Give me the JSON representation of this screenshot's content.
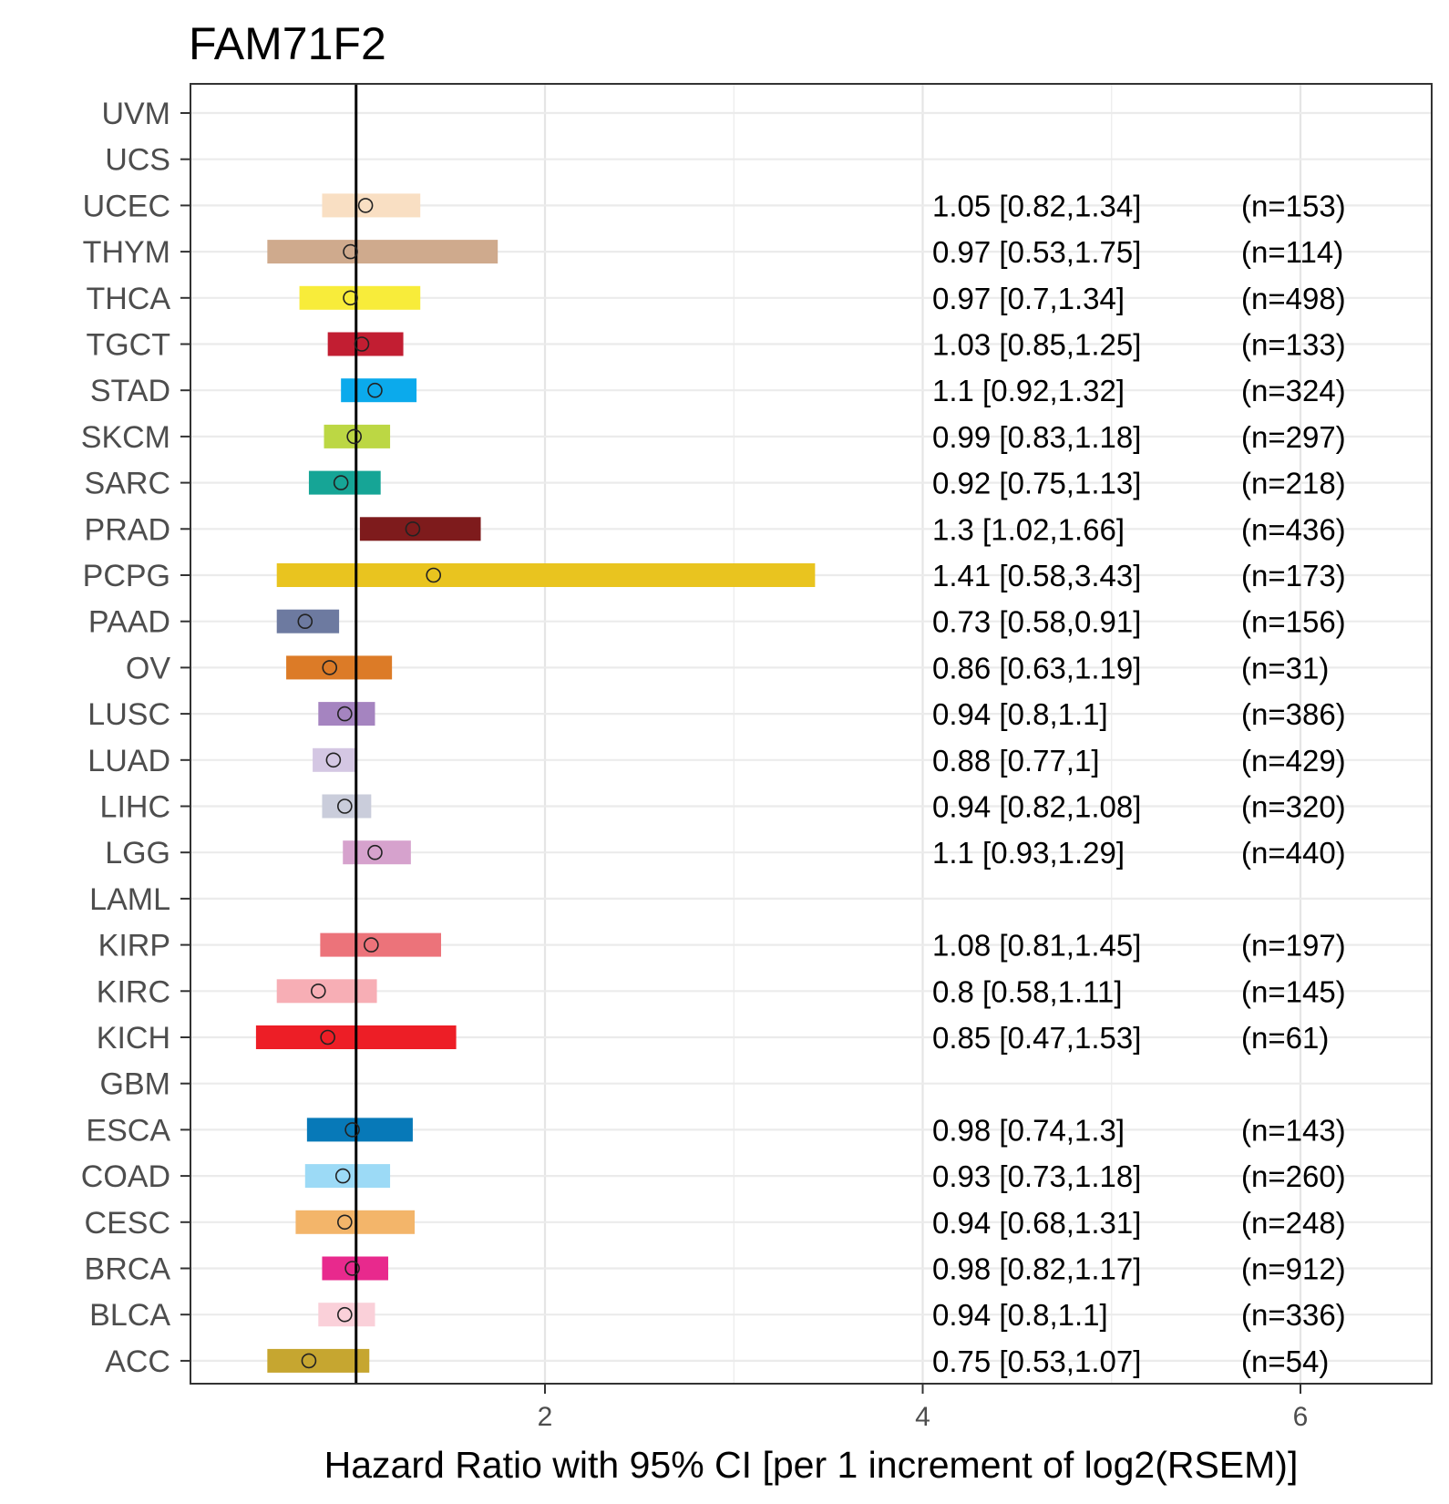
{
  "chart_data": {
    "type": "forest",
    "title": "FAM71F2",
    "xlabel": "Hazard Ratio with 95% CI [per 1 increment of log2(RSEM)]",
    "ylabel": "",
    "xlim": [
      0.13,
      6.7
    ],
    "xticks": [
      2,
      4,
      6
    ],
    "reference_line": 1,
    "grid": true,
    "categories": [
      "UVM",
      "UCS",
      "UCEC",
      "THYM",
      "THCA",
      "TGCT",
      "STAD",
      "SKCM",
      "SARC",
      "PRAD",
      "PCPG",
      "PAAD",
      "OV",
      "LUSC",
      "LUAD",
      "LIHC",
      "LGG",
      "LAML",
      "KIRP",
      "KIRC",
      "KICH",
      "GBM",
      "ESCA",
      "COAD",
      "CESC",
      "BRCA",
      "BLCA",
      "ACC"
    ],
    "rows": [
      {
        "cancer": "UVM",
        "hr": null,
        "lo": null,
        "hi": null,
        "label": "",
        "n": "",
        "color": null
      },
      {
        "cancer": "UCS",
        "hr": null,
        "lo": null,
        "hi": null,
        "label": "",
        "n": "",
        "color": null
      },
      {
        "cancer": "UCEC",
        "hr": 1.05,
        "lo": 0.82,
        "hi": 1.34,
        "label": "1.05 [0.82,1.34]",
        "n": "(n=153)",
        "color": "#F9DFC3"
      },
      {
        "cancer": "THYM",
        "hr": 0.97,
        "lo": 0.53,
        "hi": 1.75,
        "label": "0.97 [0.53,1.75]",
        "n": "(n=114)",
        "color": "#CFAA8D"
      },
      {
        "cancer": "THCA",
        "hr": 0.97,
        "lo": 0.7,
        "hi": 1.34,
        "label": "0.97 [0.7,1.34]",
        "n": "(n=498)",
        "color": "#F8EC3A"
      },
      {
        "cancer": "TGCT",
        "hr": 1.03,
        "lo": 0.85,
        "hi": 1.25,
        "label": "1.03 [0.85,1.25]",
        "n": "(n=133)",
        "color": "#C21E32"
      },
      {
        "cancer": "STAD",
        "hr": 1.1,
        "lo": 0.92,
        "hi": 1.32,
        "label": "1.1 [0.92,1.32]",
        "n": "(n=324)",
        "color": "#0BAAEC"
      },
      {
        "cancer": "SKCM",
        "hr": 0.99,
        "lo": 0.83,
        "hi": 1.18,
        "label": "0.99 [0.83,1.18]",
        "n": "(n=297)",
        "color": "#BCD744"
      },
      {
        "cancer": "SARC",
        "hr": 0.92,
        "lo": 0.75,
        "hi": 1.13,
        "label": "0.92 [0.75,1.13]",
        "n": "(n=218)",
        "color": "#16A596"
      },
      {
        "cancer": "PRAD",
        "hr": 1.3,
        "lo": 1.02,
        "hi": 1.66,
        "label": "1.3 [1.02,1.66]",
        "n": "(n=436)",
        "color": "#7E1B1C"
      },
      {
        "cancer": "PCPG",
        "hr": 1.41,
        "lo": 0.58,
        "hi": 3.43,
        "label": "1.41 [0.58,3.43]",
        "n": "(n=173)",
        "color": "#E9C41F"
      },
      {
        "cancer": "PAAD",
        "hr": 0.73,
        "lo": 0.58,
        "hi": 0.91,
        "label": "0.73 [0.58,0.91]",
        "n": "(n=156)",
        "color": "#6D7AA0"
      },
      {
        "cancer": "OV",
        "hr": 0.86,
        "lo": 0.63,
        "hi": 1.19,
        "label": "0.86 [0.63,1.19]",
        "n": "(n=31)",
        "color": "#DC7B27"
      },
      {
        "cancer": "LUSC",
        "hr": 0.94,
        "lo": 0.8,
        "hi": 1.1,
        "label": "0.94 [0.8,1.1]",
        "n": "(n=386)",
        "color": "#A584C0"
      },
      {
        "cancer": "LUAD",
        "hr": 0.88,
        "lo": 0.77,
        "hi": 1.0,
        "label": "0.88 [0.77,1]",
        "n": "(n=429)",
        "color": "#D4C7E3"
      },
      {
        "cancer": "LIHC",
        "hr": 0.94,
        "lo": 0.82,
        "hi": 1.08,
        "label": "0.94 [0.82,1.08]",
        "n": "(n=320)",
        "color": "#CACDDB"
      },
      {
        "cancer": "LGG",
        "hr": 1.1,
        "lo": 0.93,
        "hi": 1.29,
        "label": "1.1 [0.93,1.29]",
        "n": "(n=440)",
        "color": "#D6A2CD"
      },
      {
        "cancer": "LAML",
        "hr": null,
        "lo": null,
        "hi": null,
        "label": "",
        "n": "",
        "color": null
      },
      {
        "cancer": "KIRP",
        "hr": 1.08,
        "lo": 0.81,
        "hi": 1.45,
        "label": "1.08 [0.81,1.45]",
        "n": "(n=197)",
        "color": "#EC737A"
      },
      {
        "cancer": "KIRC",
        "hr": 0.8,
        "lo": 0.58,
        "hi": 1.11,
        "label": "0.8 [0.58,1.11]",
        "n": "(n=145)",
        "color": "#F7AEB5"
      },
      {
        "cancer": "KICH",
        "hr": 0.85,
        "lo": 0.47,
        "hi": 1.53,
        "label": "0.85 [0.47,1.53]",
        "n": "(n=61)",
        "color": "#ED1E26"
      },
      {
        "cancer": "GBM",
        "hr": null,
        "lo": null,
        "hi": null,
        "label": "",
        "n": "",
        "color": null
      },
      {
        "cancer": "ESCA",
        "hr": 0.98,
        "lo": 0.74,
        "hi": 1.3,
        "label": "0.98 [0.74,1.3]",
        "n": "(n=143)",
        "color": "#0779B8"
      },
      {
        "cancer": "COAD",
        "hr": 0.93,
        "lo": 0.73,
        "hi": 1.18,
        "label": "0.93 [0.73,1.18]",
        "n": "(n=260)",
        "color": "#9CDAF6"
      },
      {
        "cancer": "CESC",
        "hr": 0.94,
        "lo": 0.68,
        "hi": 1.31,
        "label": "0.94 [0.68,1.31]",
        "n": "(n=248)",
        "color": "#F3B56A"
      },
      {
        "cancer": "BRCA",
        "hr": 0.98,
        "lo": 0.82,
        "hi": 1.17,
        "label": "0.98 [0.82,1.17]",
        "n": "(n=912)",
        "color": "#E8298D"
      },
      {
        "cancer": "BLCA",
        "hr": 0.94,
        "lo": 0.8,
        "hi": 1.1,
        "label": "0.94 [0.8,1.1]",
        "n": "(n=336)",
        "color": "#FAD0D9"
      },
      {
        "cancer": "ACC",
        "hr": 0.75,
        "lo": 0.53,
        "hi": 1.07,
        "label": "0.75 [0.53,1.07]",
        "n": "(n=54)",
        "color": "#C6A630"
      }
    ]
  }
}
